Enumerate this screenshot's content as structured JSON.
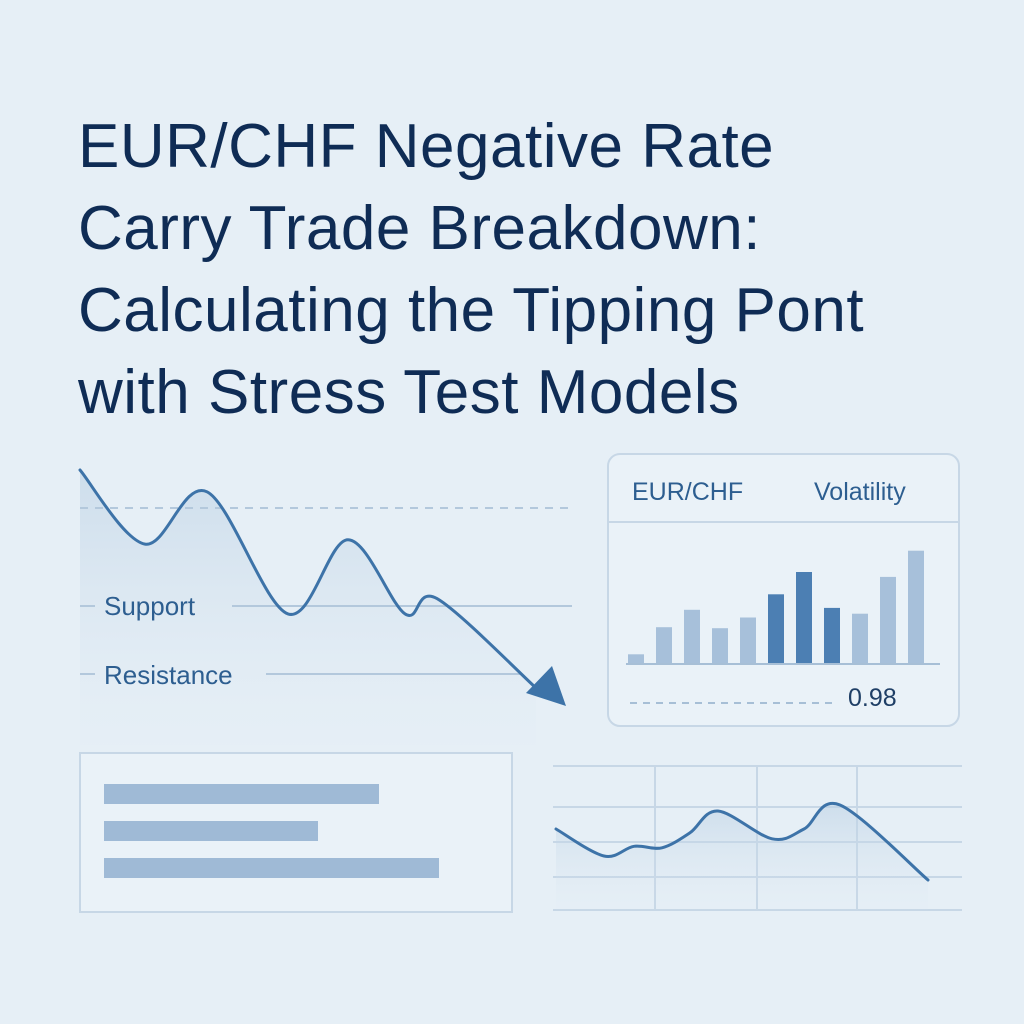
{
  "title_lines": [
    "EUR/CHF Negative Rate",
    "Carry Trade Breakdown:",
    "Calculating the Tipping Pont",
    "with Stress Test Models"
  ],
  "colors": {
    "background": "#e6eff6",
    "title": "#0f2c55",
    "line": "#3d73a8",
    "bar_light": "#a7c0da",
    "bar_dark": "#4c7fb3",
    "panel_border": "#c7d7e6"
  },
  "price_chart": {
    "support_label": "Support",
    "resistance_label": "Resistance"
  },
  "chart_data": [
    {
      "type": "line",
      "title": "",
      "trend": "down",
      "end_marker": "arrow",
      "y": [
        1.0,
        0.66,
        0.9,
        0.34,
        0.68,
        0.34,
        0.41,
        0.0
      ],
      "ylim": [
        0,
        1
      ],
      "grid": false,
      "levels": [
        "Support",
        "Resistance"
      ]
    },
    {
      "type": "bar",
      "legend": [
        "EUR/CHF",
        "Volatility"
      ],
      "values": [
        10,
        38,
        56,
        37,
        48,
        72,
        95,
        58,
        52,
        90,
        117
      ],
      "highlighted": [
        false,
        false,
        false,
        false,
        false,
        true,
        true,
        true,
        false,
        false,
        false
      ],
      "ylim": [
        0,
        125
      ],
      "grid": false,
      "annotation": "0.98"
    },
    {
      "type": "bar",
      "orientation": "horizontal",
      "values": [
        275,
        214,
        335
      ],
      "xlim": [
        0,
        360
      ],
      "grid": false
    },
    {
      "type": "line",
      "y": [
        0.68,
        0.32,
        0.45,
        0.43,
        0.63,
        0.92,
        0.55,
        0.68,
        1.0,
        0.0
      ],
      "ylim": [
        0,
        1
      ],
      "grid": true
    }
  ]
}
